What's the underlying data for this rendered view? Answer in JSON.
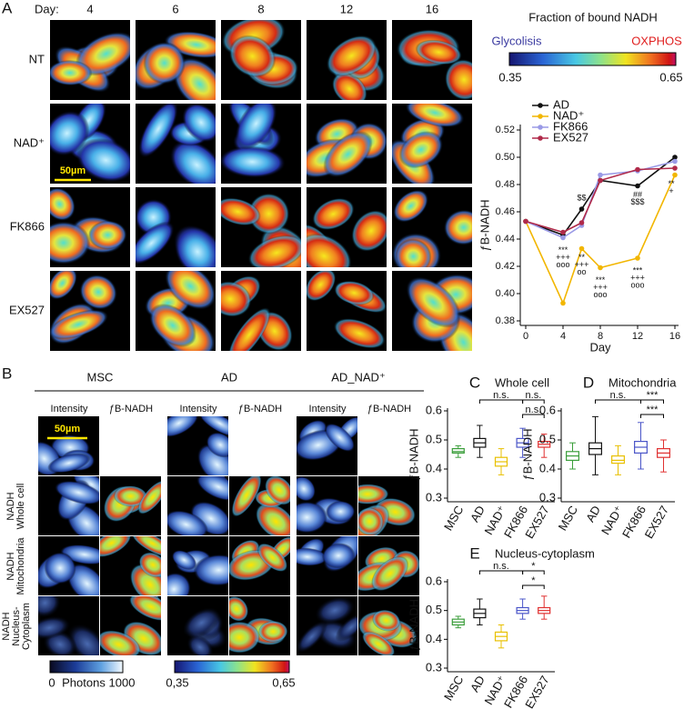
{
  "panel_a": {
    "label": "A",
    "day_label": "Day:",
    "days": [
      "4",
      "6",
      "8",
      "12",
      "16"
    ],
    "rows": [
      "NT",
      "NAD⁺",
      "FK866",
      "EX527"
    ],
    "scale_bar": "50µm",
    "colorbar": {
      "title": "Fraction of bound NADH",
      "left": "Glycolisis",
      "right": "OXPHOS",
      "min": "0.35",
      "max": "0.65"
    }
  },
  "panel_b": {
    "label": "B",
    "groups": [
      {
        "name": "MSC",
        "columns": [
          "Intensity",
          "ƒB-NADH"
        ]
      },
      {
        "name": "AD",
        "columns": [
          "Intensity",
          "ƒB-NADH"
        ]
      },
      {
        "name": "AD_NAD⁺",
        "columns": [
          "Intensity",
          "ƒB-NADH"
        ]
      }
    ],
    "rows": [
      [
        "NADH",
        "Whole cell"
      ],
      [
        "NADH",
        "Mitochondria"
      ],
      [
        "NADH",
        "Nucleus-",
        "Cytoplasm"
      ]
    ],
    "scale_bar": "50µm",
    "intensity_bar": {
      "min": "0",
      "label": "Photons",
      "max": "1000"
    },
    "fb_bar": {
      "min": "0,35",
      "max": "0,65"
    }
  },
  "chart_data": [
    {
      "type": "line",
      "ylabel": "ƒB-NADH",
      "xlabel": "Day",
      "x": [
        0,
        4,
        6,
        8,
        12,
        16
      ],
      "xlim": [
        0,
        16
      ],
      "xticks": [
        0,
        4,
        8,
        12,
        16
      ],
      "ylim": [
        0.38,
        0.52
      ],
      "yticks": [
        0.38,
        {
          "value": 0.4,
          "label": "0.40"
        },
        0.42,
        0.44,
        0.46,
        0.48,
        {
          "value": 0.5,
          "label": "0.50"
        },
        0.52
      ],
      "series": [
        {
          "name": "AD",
          "color": "#111111",
          "values": [
            0.453,
            0.443,
            0.462,
            0.483,
            0.479,
            0.5
          ]
        },
        {
          "name": "NAD⁺",
          "color": "#f2b600",
          "values": [
            0.453,
            0.393,
            0.433,
            0.419,
            0.426,
            0.487
          ]
        },
        {
          "name": "FK866",
          "color": "#9a9ae6",
          "values": [
            0.453,
            0.441,
            0.45,
            0.487,
            0.49,
            0.497
          ]
        },
        {
          "name": "EX527",
          "color": "#b02a4a",
          "values": [
            0.453,
            0.445,
            0.452,
            0.483,
            0.491,
            0.492
          ]
        }
      ],
      "annotations": [
        {
          "series": "NAD⁺",
          "x": 4,
          "text": [
            "***",
            "+++",
            "ooo"
          ]
        },
        {
          "series": "AD",
          "x": 6,
          "text": [
            "$$"
          ]
        },
        {
          "series": "NAD⁺",
          "x": 6,
          "text": [
            "**",
            "+++",
            "oo"
          ]
        },
        {
          "series": "NAD⁺",
          "x": 8,
          "text": [
            "***",
            "+++",
            "ooo"
          ]
        },
        {
          "series": "AD",
          "x": 12,
          "text": [
            "##",
            "$$$"
          ]
        },
        {
          "series": "NAD⁺",
          "x": 12,
          "text": [
            "***",
            "+++",
            "ooo"
          ]
        },
        {
          "series": "NAD⁺",
          "x": 16,
          "text": [
            "**",
            "+"
          ]
        }
      ]
    },
    {
      "type": "box",
      "label": "C",
      "title": "Whole cell",
      "ylabel": "ƒB-NADH",
      "categories": [
        "MSC",
        "AD",
        "NAD⁺",
        "FK866",
        "EX527"
      ],
      "colors": [
        "#3a9e3a",
        "#111111",
        "#e8c000",
        "#4a55c8",
        "#e03030"
      ],
      "boxes": [
        {
          "min": 0.44,
          "q1": 0.455,
          "median": 0.46,
          "q3": 0.47,
          "max": 0.48
        },
        {
          "min": 0.44,
          "q1": 0.475,
          "median": 0.49,
          "q3": 0.505,
          "max": 0.55
        },
        {
          "min": 0.38,
          "q1": 0.41,
          "median": 0.425,
          "q3": 0.44,
          "max": 0.47
        },
        {
          "min": 0.44,
          "q1": 0.475,
          "median": 0.49,
          "q3": 0.505,
          "max": 0.54
        },
        {
          "min": 0.44,
          "q1": 0.475,
          "median": 0.485,
          "q3": 0.495,
          "max": 0.52
        }
      ],
      "ylim": [
        0.3,
        0.6
      ],
      "yticks": [
        0.3,
        0.4,
        0.5,
        0.6
      ],
      "comparisons": [
        {
          "groups": [
            "AD",
            "FK866"
          ],
          "label": "n.s."
        },
        {
          "groups": [
            "FK866",
            "EX527"
          ],
          "label": "n.s."
        },
        {
          "groups": [
            "FK866",
            "EX527"
          ],
          "label": "n.s."
        }
      ]
    },
    {
      "type": "box",
      "label": "D",
      "title": "Mitochondria",
      "ylabel": "ƒB-NADH",
      "categories": [
        "MSC",
        "AD",
        "NAD⁺",
        "FK866",
        "EX527"
      ],
      "colors": [
        "#3a9e3a",
        "#111111",
        "#e8c000",
        "#4a55c8",
        "#e03030"
      ],
      "boxes": [
        {
          "min": 0.4,
          "q1": 0.43,
          "median": 0.445,
          "q3": 0.46,
          "max": 0.49
        },
        {
          "min": 0.38,
          "q1": 0.45,
          "median": 0.47,
          "q3": 0.49,
          "max": 0.58
        },
        {
          "min": 0.38,
          "q1": 0.42,
          "median": 0.43,
          "q3": 0.445,
          "max": 0.48
        },
        {
          "min": 0.4,
          "q1": 0.455,
          "median": 0.475,
          "q3": 0.495,
          "max": 0.56
        },
        {
          "min": 0.39,
          "q1": 0.44,
          "median": 0.455,
          "q3": 0.47,
          "max": 0.5
        }
      ],
      "ylim": [
        0.3,
        0.6
      ],
      "yticks": [
        0.3,
        0.4,
        0.5,
        0.6
      ],
      "comparisons": [
        {
          "groups": [
            "AD",
            "FK866"
          ],
          "label": "n.s."
        },
        {
          "groups": [
            "FK866",
            "EX527"
          ],
          "label": "***"
        },
        {
          "groups": [
            "FK866",
            "EX527"
          ],
          "label": "***"
        }
      ]
    },
    {
      "type": "box",
      "label": "E",
      "title": "Nucleus-cytoplasm",
      "ylabel": "ƒB-NADH",
      "categories": [
        "MSC",
        "AD",
        "NAD⁺",
        "FK866",
        "EX527"
      ],
      "colors": [
        "#3a9e3a",
        "#111111",
        "#e8c000",
        "#4a55c8",
        "#e03030"
      ],
      "boxes": [
        {
          "min": 0.44,
          "q1": 0.45,
          "median": 0.46,
          "q3": 0.47,
          "max": 0.48
        },
        {
          "min": 0.45,
          "q1": 0.475,
          "median": 0.49,
          "q3": 0.505,
          "max": 0.54
        },
        {
          "min": 0.37,
          "q1": 0.395,
          "median": 0.41,
          "q3": 0.425,
          "max": 0.45
        },
        {
          "min": 0.47,
          "q1": 0.49,
          "median": 0.5,
          "q3": 0.51,
          "max": 0.54
        },
        {
          "min": 0.47,
          "q1": 0.49,
          "median": 0.5,
          "q3": 0.51,
          "max": 0.55
        }
      ],
      "ylim": [
        0.3,
        0.6
      ],
      "yticks": [
        0.3,
        0.4,
        0.5,
        0.6
      ],
      "comparisons": [
        {
          "groups": [
            "AD",
            "FK866"
          ],
          "label": "n.s."
        },
        {
          "groups": [
            "FK866",
            "EX527"
          ],
          "label": "*"
        },
        {
          "groups": [
            "FK866",
            "EX527"
          ],
          "label": "*"
        }
      ]
    }
  ]
}
